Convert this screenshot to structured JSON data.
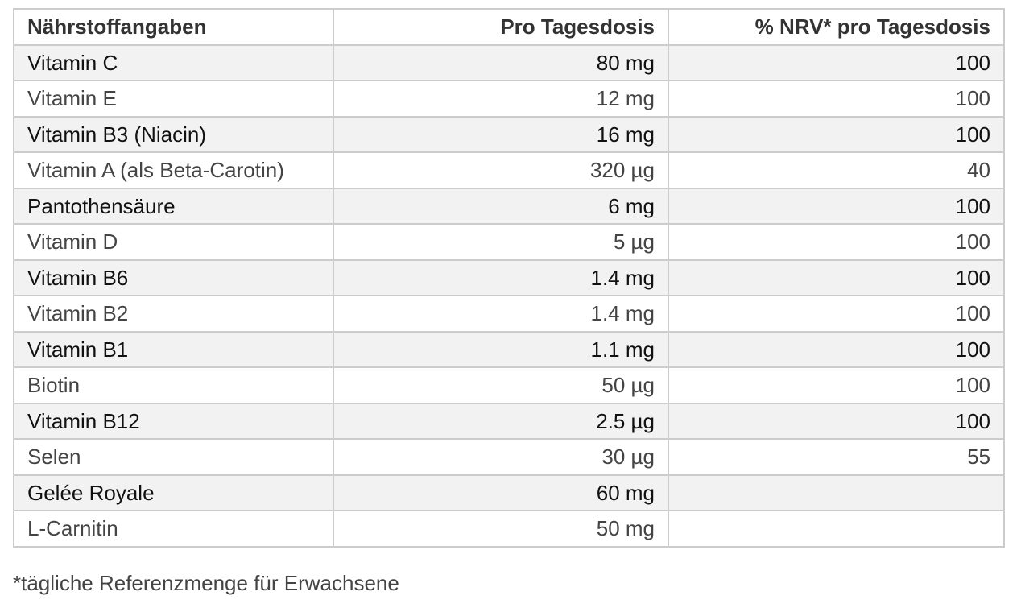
{
  "table": {
    "headers": [
      "Nährstoffangaben",
      "Pro Tagesdosis",
      "% NRV* pro Tagesdosis"
    ],
    "rows": [
      [
        "Vitamin C",
        "80 mg",
        "100"
      ],
      [
        "Vitamin E",
        "12 mg",
        "100"
      ],
      [
        "Vitamin B3 (Niacin)",
        "16 mg",
        "100"
      ],
      [
        "Vitamin A (als Beta-Carotin)",
        "320 µg",
        "40"
      ],
      [
        "Pantothensäure",
        "6 mg",
        "100"
      ],
      [
        "Vitamin D",
        "5 µg",
        "100"
      ],
      [
        "Vitamin B6",
        "1.4 mg",
        "100"
      ],
      [
        "Vitamin B2",
        "1.4 mg",
        "100"
      ],
      [
        "Vitamin B1",
        "1.1 mg",
        "100"
      ],
      [
        "Biotin",
        "50 µg",
        "100"
      ],
      [
        "Vitamin B12",
        "2.5 µg",
        "100"
      ],
      [
        "Selen",
        "30 µg",
        "55"
      ],
      [
        "Gelée Royale",
        "60 mg",
        ""
      ],
      [
        "L-Carnitin",
        "50 mg",
        ""
      ]
    ]
  },
  "footnote": "*tägliche Referenzmenge für Erwachsene",
  "colors": {
    "border": "#cccccc",
    "row_shaded": "#f2f2f2",
    "row_plain": "#ffffff",
    "text": "#222222"
  }
}
